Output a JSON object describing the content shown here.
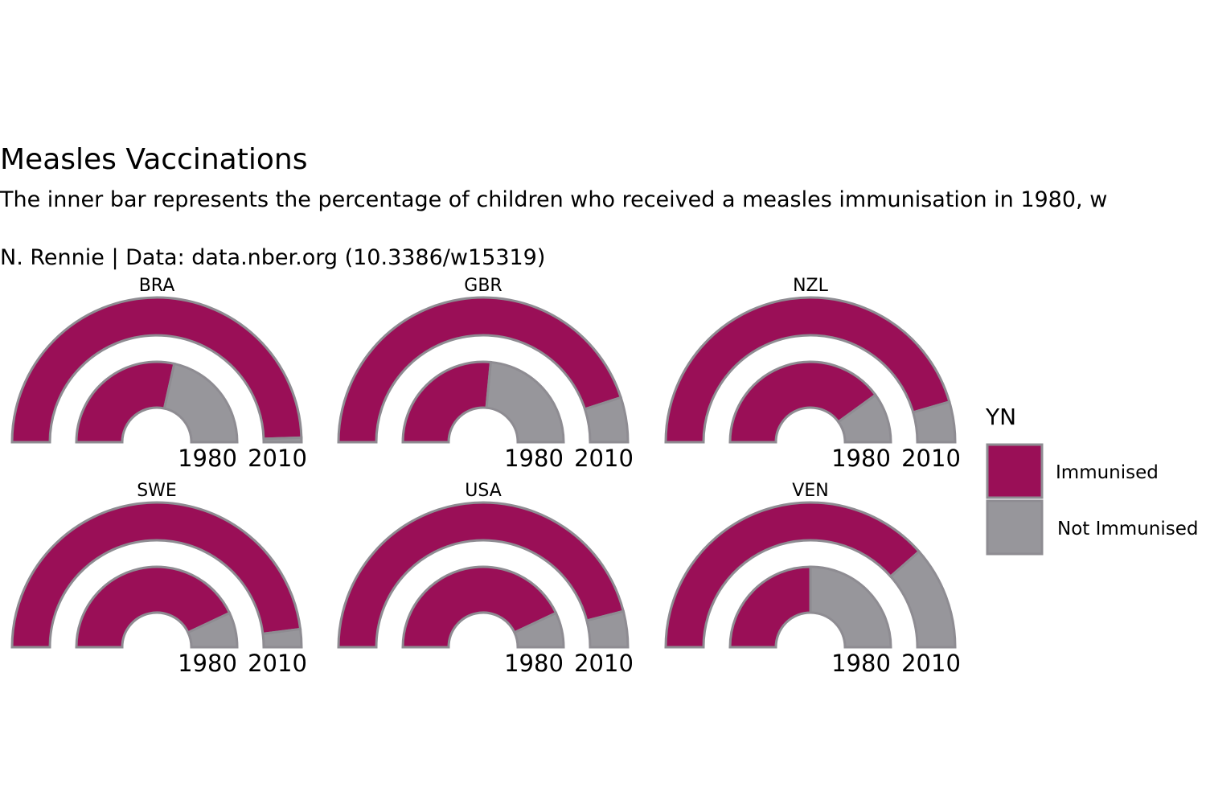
{
  "title": "Measles Vaccinations",
  "subtitle": "The inner bar represents the percentage of children who received a measles immunisation in 1980, w",
  "caption": "N. Rennie | Data: data.nber.org (10.3386/w15319)",
  "colors": {
    "immunised": "#9a0f57",
    "not_immunised": "#97969b",
    "outline": "#8e8c92"
  },
  "chart_data": {
    "type": "radial_bar",
    "legend": {
      "title": "YN",
      "position": "right",
      "entries": [
        "Immunised",
        "Not Immunised"
      ]
    },
    "year_labels": [
      "1980",
      "2010"
    ],
    "unit": "percent",
    "panels": [
      {
        "country": "BRA",
        "y1980": 57,
        "y2010": 99
      },
      {
        "country": "GBR",
        "y1980": 53,
        "y2010": 90
      },
      {
        "country": "NZL",
        "y1980": 80,
        "y2010": 91
      },
      {
        "country": "SWE",
        "y1980": 86,
        "y2010": 96
      },
      {
        "country": "USA",
        "y1980": 86,
        "y2010": 92
      },
      {
        "country": "VEN",
        "y1980": 50,
        "y2010": 77
      }
    ]
  }
}
